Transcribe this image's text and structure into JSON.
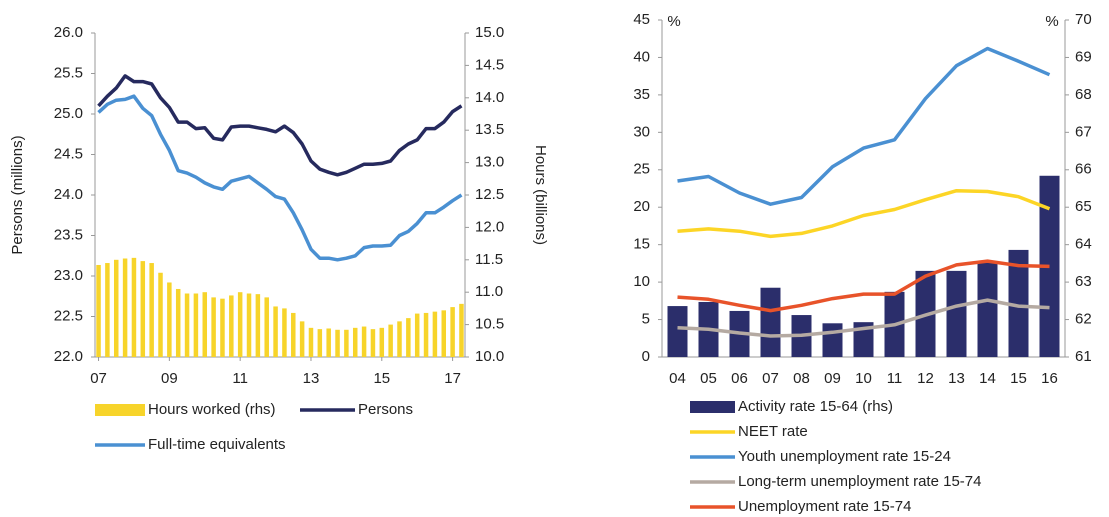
{
  "chart_data": [
    {
      "type": "combo",
      "ylabel": "Persons (millions)",
      "y2label": "Hours (billions)",
      "x": [
        7,
        7.25,
        7.5,
        7.75,
        8,
        8.25,
        8.5,
        8.75,
        9,
        9.25,
        9.5,
        9.75,
        10,
        10.25,
        10.5,
        10.75,
        11,
        11.25,
        11.5,
        11.75,
        12,
        12.25,
        12.5,
        12.75,
        13,
        13.25,
        13.5,
        13.75,
        14,
        14.25,
        14.5,
        14.75,
        15,
        15.25,
        15.5,
        15.75,
        16,
        16.25,
        16.5,
        16.75,
        17,
        17.25
      ],
      "xlim": [
        6.9,
        17.35
      ],
      "xticks": [
        {
          "value": 7,
          "label": "07"
        },
        {
          "value": 9,
          "label": "09"
        },
        11,
        13,
        15,
        17
      ],
      "ylim": [
        22,
        26
      ],
      "yticks": [
        {
          "value": 22,
          "label": "22.0"
        },
        22.5,
        {
          "value": 23,
          "label": "23.0"
        },
        23.5,
        {
          "value": 24,
          "label": "24.0"
        },
        24.5,
        {
          "value": 25,
          "label": "25.0"
        },
        25.5,
        {
          "value": 26,
          "label": "26.0"
        }
      ],
      "y2lim": [
        10,
        15
      ],
      "y2ticks": [
        {
          "value": 10,
          "label": "10.0"
        },
        10.5,
        {
          "value": 11,
          "label": "11.0"
        },
        11.5,
        {
          "value": 12,
          "label": "12.0"
        },
        12.5,
        {
          "value": 13,
          "label": "13.0"
        },
        13.5,
        {
          "value": 14,
          "label": "14.0"
        },
        14.5,
        {
          "value": 15,
          "label": "15.0"
        }
      ],
      "series": [
        {
          "name": "Hours worked (rhs)",
          "kind": "bar",
          "axis": "y2",
          "color": "#f7d42a",
          "values": [
            11.42,
            11.45,
            11.5,
            11.52,
            11.53,
            11.48,
            11.45,
            11.3,
            11.15,
            11.05,
            10.98,
            10.98,
            11.0,
            10.92,
            10.9,
            10.95,
            11.0,
            10.98,
            10.97,
            10.92,
            10.78,
            10.75,
            10.68,
            10.55,
            10.45,
            10.43,
            10.44,
            10.42,
            10.42,
            10.45,
            10.47,
            10.43,
            10.45,
            10.5,
            10.55,
            10.6,
            10.67,
            10.68,
            10.7,
            10.72,
            10.77,
            10.82
          ]
        },
        {
          "name": "Persons",
          "kind": "line",
          "color": "#262a5e",
          "values": [
            25.1,
            25.22,
            25.32,
            25.47,
            25.4,
            25.4,
            25.37,
            25.2,
            25.08,
            24.9,
            24.9,
            24.82,
            24.83,
            24.7,
            24.68,
            24.84,
            24.85,
            24.85,
            24.83,
            24.81,
            24.78,
            24.85,
            24.77,
            24.63,
            24.42,
            24.32,
            24.28,
            24.25,
            24.28,
            24.33,
            24.38,
            24.38,
            24.39,
            24.42,
            24.55,
            24.63,
            24.68,
            24.82,
            24.82,
            24.9,
            25.03,
            25.1
          ]
        },
        {
          "name": "Full-time equivalents",
          "kind": "line",
          "color": "#4a90d2",
          "values": [
            25.02,
            25.12,
            25.17,
            25.18,
            25.22,
            25.07,
            24.98,
            24.75,
            24.55,
            24.3,
            24.27,
            24.22,
            24.15,
            24.1,
            24.07,
            24.17,
            24.2,
            24.23,
            24.15,
            24.07,
            23.98,
            23.95,
            23.78,
            23.57,
            23.33,
            23.22,
            23.22,
            23.2,
            23.22,
            23.25,
            23.35,
            23.37,
            23.37,
            23.38,
            23.5,
            23.55,
            23.65,
            23.78,
            23.78,
            23.85,
            23.93,
            24.0
          ]
        }
      ]
    },
    {
      "type": "combo",
      "ylabel": "%",
      "y2label": "%",
      "categories": [
        "04",
        "05",
        "06",
        "07",
        "08",
        "09",
        "10",
        "11",
        "12",
        "13",
        "14",
        "15",
        "16"
      ],
      "ylim": [
        0,
        45
      ],
      "yticks": [
        0,
        5,
        10,
        15,
        20,
        25,
        30,
        35,
        40,
        45
      ],
      "y2lim": [
        61,
        70
      ],
      "y2ticks": [
        61,
        62,
        63,
        64,
        65,
        66,
        67,
        68,
        69,
        70
      ],
      "series": [
        {
          "name": "Activity rate 15-64 (rhs)",
          "kind": "bar",
          "axis": "y2",
          "color": "#2b2e6b",
          "values": [
            62.36,
            62.47,
            62.23,
            62.85,
            62.12,
            61.9,
            61.93,
            62.74,
            63.3,
            63.3,
            63.55,
            63.86,
            65.84
          ]
        },
        {
          "name": "NEET rate",
          "kind": "line",
          "color": "#fcd526",
          "values": [
            16.8,
            17.1,
            16.8,
            16.1,
            16.5,
            17.5,
            18.9,
            19.7,
            21.0,
            22.2,
            22.1,
            21.4,
            19.8
          ]
        },
        {
          "name": "Youth unemployment rate 15-24",
          "kind": "line",
          "color": "#4a90d2",
          "values": [
            23.5,
            24.1,
            21.9,
            20.4,
            21.3,
            25.4,
            27.9,
            29.0,
            34.5,
            38.9,
            41.2,
            39.5,
            37.7
          ]
        },
        {
          "name": "Long-term unemployment rate 15-74",
          "kind": "line",
          "color": "#b5aaa2",
          "values": [
            3.9,
            3.7,
            3.2,
            2.8,
            2.9,
            3.3,
            3.8,
            4.3,
            5.6,
            6.8,
            7.6,
            6.8,
            6.6
          ]
        },
        {
          "name": "Unemployment rate 15-74",
          "kind": "line",
          "color": "#e8532a",
          "values": [
            8.0,
            7.7,
            6.9,
            6.2,
            6.9,
            7.8,
            8.4,
            8.4,
            10.8,
            12.3,
            12.8,
            12.2,
            12.1
          ]
        }
      ]
    }
  ]
}
